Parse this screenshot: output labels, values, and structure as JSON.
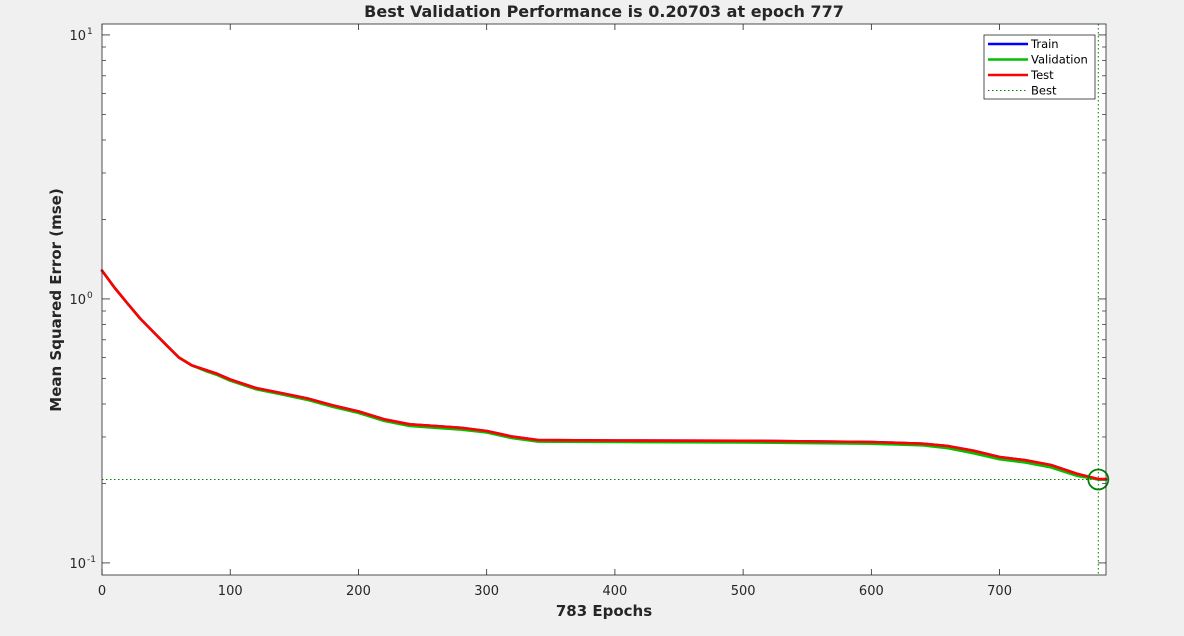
{
  "chart_data": {
    "type": "line",
    "title": "Best Validation Performance is 0.20703 at epoch 777",
    "xlabel": "783 Epochs",
    "ylabel": "Mean Squared Error  (mse)",
    "xlim": [
      0,
      783
    ],
    "ylim": [
      0.09,
      11
    ],
    "yscale": "log",
    "grid": false,
    "legend_position": "top-right",
    "x_ticks": [
      0,
      100,
      200,
      300,
      400,
      500,
      600,
      700
    ],
    "y_ticks": [
      {
        "value": 0.1,
        "base": "10",
        "exp": "-1"
      },
      {
        "value": 1,
        "base": "10",
        "exp": "0"
      },
      {
        "value": 10,
        "base": "10",
        "exp": "1"
      }
    ],
    "series": [
      {
        "name": "Train",
        "color": "#0000ff",
        "style": "solid",
        "x": [
          0,
          10,
          20,
          30,
          40,
          50,
          60,
          70,
          80,
          90,
          100,
          120,
          140,
          160,
          180,
          200,
          220,
          240,
          260,
          280,
          300,
          320,
          340,
          400,
          500,
          600,
          640,
          660,
          680,
          700,
          720,
          740,
          760,
          777,
          783
        ],
        "y": [
          1.28,
          1.1,
          0.96,
          0.84,
          0.75,
          0.67,
          0.6,
          0.56,
          0.54,
          0.52,
          0.495,
          0.46,
          0.44,
          0.42,
          0.395,
          0.375,
          0.35,
          0.335,
          0.33,
          0.325,
          0.316,
          0.301,
          0.292,
          0.291,
          0.29,
          0.287,
          0.283,
          0.277,
          0.266,
          0.252,
          0.245,
          0.235,
          0.218,
          0.207,
          0.207
        ]
      },
      {
        "name": "Validation",
        "color": "#00c000",
        "style": "solid",
        "x": [
          0,
          10,
          20,
          30,
          40,
          50,
          60,
          70,
          80,
          90,
          100,
          120,
          140,
          160,
          180,
          200,
          220,
          240,
          260,
          280,
          300,
          320,
          340,
          400,
          500,
          600,
          640,
          660,
          680,
          700,
          720,
          740,
          760,
          777,
          783
        ],
        "y": [
          1.28,
          1.1,
          0.96,
          0.84,
          0.75,
          0.67,
          0.6,
          0.56,
          0.535,
          0.515,
          0.49,
          0.455,
          0.435,
          0.415,
          0.39,
          0.37,
          0.345,
          0.33,
          0.325,
          0.32,
          0.312,
          0.297,
          0.288,
          0.287,
          0.286,
          0.283,
          0.279,
          0.272,
          0.26,
          0.247,
          0.24,
          0.23,
          0.214,
          0.20703,
          0.207
        ]
      },
      {
        "name": "Test",
        "color": "#ff0000",
        "style": "solid",
        "x": [
          0,
          10,
          20,
          30,
          40,
          50,
          60,
          70,
          80,
          90,
          100,
          120,
          140,
          160,
          180,
          200,
          220,
          240,
          260,
          280,
          300,
          320,
          340,
          400,
          500,
          600,
          640,
          660,
          680,
          700,
          720,
          740,
          760,
          777,
          783
        ],
        "y": [
          1.28,
          1.1,
          0.96,
          0.84,
          0.75,
          0.67,
          0.6,
          0.56,
          0.54,
          0.52,
          0.495,
          0.46,
          0.44,
          0.42,
          0.395,
          0.375,
          0.35,
          0.335,
          0.33,
          0.325,
          0.316,
          0.301,
          0.292,
          0.291,
          0.29,
          0.287,
          0.283,
          0.277,
          0.266,
          0.252,
          0.245,
          0.235,
          0.218,
          0.208,
          0.208
        ]
      }
    ],
    "best": {
      "name": "Best",
      "color": "#008000",
      "style": "dotted",
      "epoch": 777,
      "value": 0.20703
    }
  }
}
